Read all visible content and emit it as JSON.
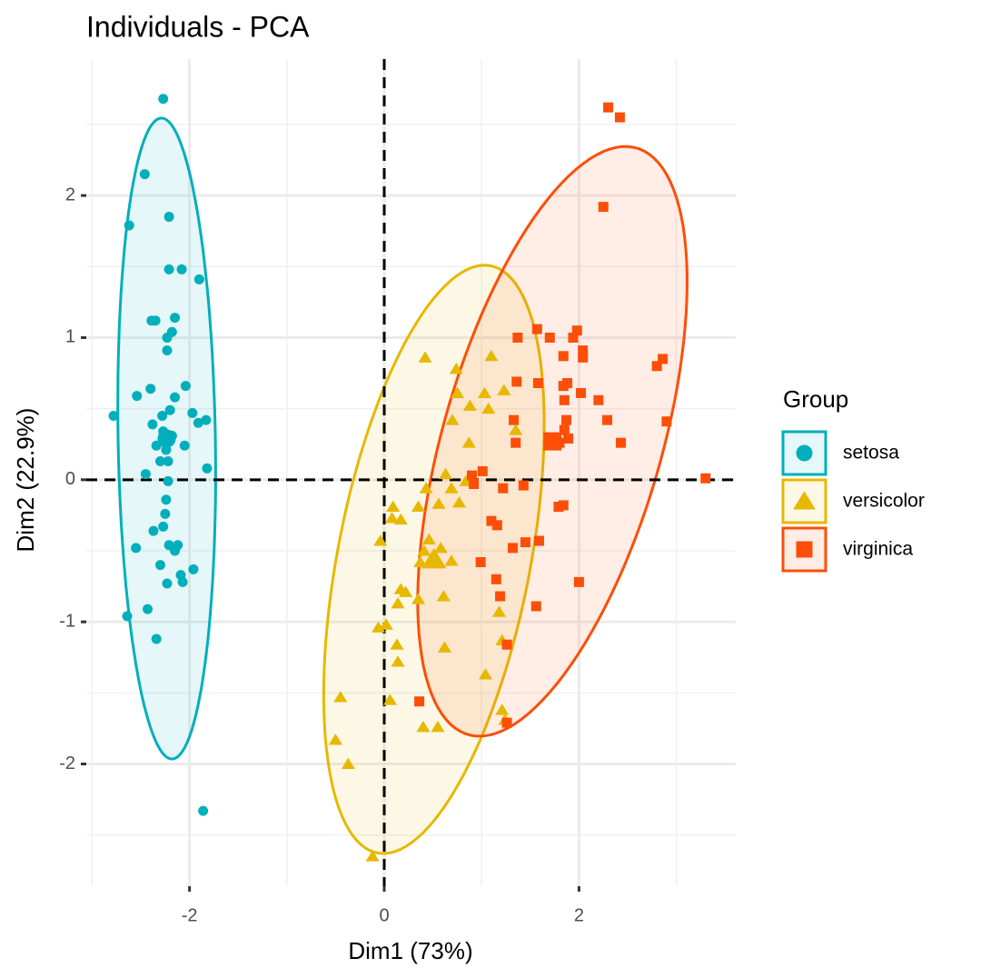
{
  "chart_data": {
    "type": "scatter",
    "title": "Individuals - PCA",
    "x_label": "Dim1 (73%)",
    "y_label": "Dim2 (22.9%)",
    "legend_title": "Group",
    "legend_position": "right",
    "grid": true,
    "xlim": [
      -3.06,
      3.61
    ],
    "ylim": [
      -2.86,
      2.96
    ],
    "xticks": [
      -2,
      0,
      2
    ],
    "yticks": [
      -2,
      -1,
      0,
      1,
      2
    ],
    "series": [
      {
        "name": "setosa",
        "color": "#00AFBB",
        "shape": "circle",
        "x": [
          -2.27,
          -2.46,
          -2.62,
          -2.21,
          -2.21,
          -2.08,
          -1.9,
          -2.39,
          -2.35,
          -2.15,
          -2.18,
          -2.23,
          -2.23,
          -2.4,
          -2.54,
          -2.04,
          -2.15,
          -2.78,
          -2.28,
          -2.2,
          -1.97,
          -1.91,
          -1.83,
          -2.38,
          -2.27,
          -2.18,
          -2.34,
          -2.05,
          -2.22,
          -2.3,
          -2.45,
          -1.82,
          -2.24,
          -2.22,
          -2.24,
          -2.25,
          -2.27,
          -2.37,
          -2.55,
          -2.21,
          -2.12,
          -2.15,
          -2.3,
          -1.96,
          -2.09,
          -2.07,
          -2.23,
          -2.43,
          -2.64,
          -2.34,
          -1.86
        ],
        "y": [
          2.68,
          2.15,
          1.79,
          1.85,
          1.48,
          1.48,
          1.41,
          1.12,
          1.12,
          1.14,
          1.04,
          1.0,
          0.91,
          0.64,
          0.59,
          0.66,
          0.58,
          0.45,
          0.45,
          0.49,
          0.47,
          0.4,
          0.42,
          0.39,
          0.34,
          0.31,
          0.24,
          0.24,
          0.13,
          0.13,
          0.04,
          0.08,
          0.21,
          -0.01,
          -0.14,
          -0.24,
          -0.33,
          -0.36,
          -0.48,
          -0.46,
          -0.46,
          -0.5,
          -0.6,
          -0.63,
          -0.67,
          -0.72,
          -0.73,
          -0.91,
          -0.96,
          -1.12,
          -2.33
        ]
      },
      {
        "name": "versicolor",
        "color": "#E7B800",
        "shape": "triangle",
        "x": [
          0.42,
          0.74,
          1.1,
          0.75,
          1.03,
          1.23,
          0.88,
          0.7,
          1.07,
          1.35,
          0.87,
          0.63,
          0.43,
          0.69,
          0.56,
          0.09,
          0.35,
          0.08,
          0.17,
          0.77,
          0.46,
          0.41,
          0.52,
          0.58,
          0.37,
          -0.04,
          0.69,
          0.17,
          0.22,
          0.14,
          0.35,
          0.61,
          1.18,
          -0.06,
          0.02,
          0.13,
          0.14,
          0.62,
          1.21,
          1.04,
          -0.45,
          0.06,
          1.21,
          0.4,
          0.55,
          -0.5,
          -0.37,
          -0.12,
          1.24,
          0.84
        ],
        "y": [
          0.86,
          0.78,
          0.87,
          0.61,
          0.61,
          0.63,
          0.52,
          0.42,
          0.5,
          0.35,
          0.26,
          0.04,
          -0.06,
          -0.06,
          -0.17,
          -0.19,
          -0.19,
          -0.27,
          -0.28,
          -0.16,
          -0.42,
          -0.5,
          -0.54,
          -0.48,
          -0.58,
          -0.43,
          -0.57,
          -0.77,
          -0.79,
          -0.87,
          -0.84,
          -0.82,
          -0.93,
          -1.04,
          -1.02,
          -1.16,
          -1.28,
          -1.18,
          -1.13,
          -1.37,
          -1.53,
          -1.55,
          -1.62,
          -1.74,
          -1.74,
          -1.83,
          -2.0,
          -2.65,
          -1.69,
          -0.01
        ]
      },
      {
        "name": "virginica",
        "color": "#FC4E07",
        "shape": "square",
        "x": [
          2.3,
          2.42,
          2.25,
          1.57,
          1.98,
          1.7,
          1.94,
          1.37,
          2.04,
          2.04,
          1.84,
          2.86,
          2.8,
          1.36,
          1.58,
          1.88,
          1.84,
          2.02,
          1.85,
          2.2,
          1.33,
          1.87,
          2.29,
          2.9,
          1.85,
          1.35,
          1.76,
          1.8,
          1.7,
          1.89,
          2.43,
          1.01,
          0.9,
          0.92,
          1.43,
          1.22,
          1.84,
          1.79,
          1.1,
          1.16,
          1.59,
          1.45,
          1.32,
          0.99,
          1.15,
          2.0,
          1.19,
          1.56,
          1.26,
          0.36,
          1.26,
          3.3
        ],
        "y": [
          2.62,
          2.55,
          1.92,
          1.06,
          1.05,
          1.0,
          1.0,
          1.0,
          0.91,
          0.86,
          0.87,
          0.85,
          0.8,
          0.69,
          0.68,
          0.68,
          0.66,
          0.61,
          0.56,
          0.56,
          0.42,
          0.42,
          0.42,
          0.41,
          0.35,
          0.26,
          0.26,
          0.26,
          0.27,
          0.29,
          0.26,
          0.06,
          0.03,
          -0.03,
          -0.04,
          -0.06,
          -0.18,
          -0.19,
          -0.29,
          -0.32,
          -0.43,
          -0.44,
          -0.48,
          -0.58,
          -0.7,
          -0.72,
          -0.82,
          -0.89,
          -1.16,
          -1.56,
          -1.71,
          0.01
        ]
      }
    ]
  }
}
